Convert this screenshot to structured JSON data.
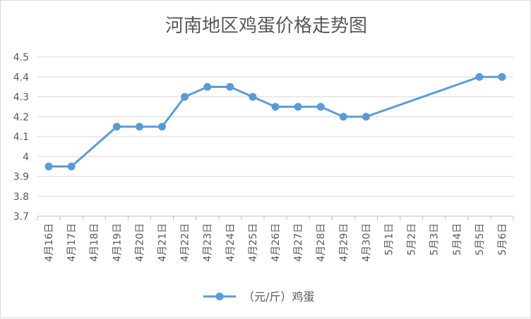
{
  "chart_data": {
    "type": "line",
    "title": "河南地区鸡蛋价格走势图",
    "categories": [
      "4月16日",
      "4月17日",
      "4月18日",
      "4月19日",
      "4月20日",
      "4月21日",
      "4月22日",
      "4月23日",
      "4月24日",
      "4月25日",
      "4月26日",
      "4月27日",
      "4月28日",
      "4月29日",
      "4月30日",
      "5月1日",
      "5月2日",
      "5月3日",
      "5月4日",
      "5月5日",
      "5月6日"
    ],
    "series": [
      {
        "name": "（元/斤）鸡蛋",
        "color": "#5b9bd5",
        "values": [
          3.95,
          3.95,
          null,
          4.15,
          4.15,
          4.15,
          4.3,
          4.35,
          4.35,
          4.3,
          4.25,
          4.25,
          4.25,
          4.2,
          4.2,
          null,
          null,
          null,
          null,
          4.4,
          4.4
        ]
      }
    ],
    "ylim": [
      3.7,
      4.5
    ],
    "yticks": [
      "3.7",
      "3.8",
      "3.9",
      "4",
      "4.1",
      "4.2",
      "4.3",
      "4.4",
      "4.5"
    ],
    "gap_handling": "connect",
    "grid": "horizontal",
    "legend": "bottom"
  }
}
